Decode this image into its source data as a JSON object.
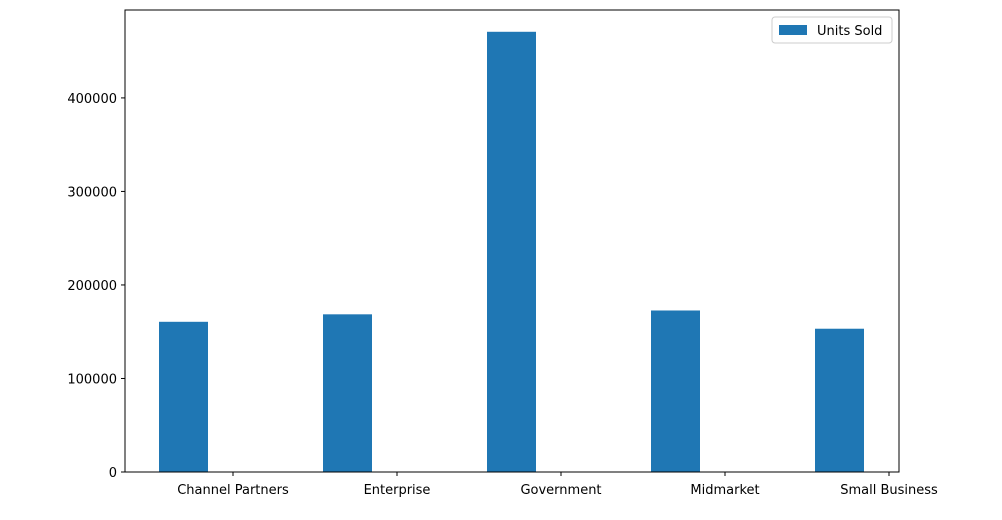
{
  "chart_data": {
    "type": "bar",
    "categories": [
      "Channel Partners",
      "Enterprise",
      "Government",
      "Midmarket",
      "Small Business"
    ],
    "series": [
      {
        "name": "Units Sold",
        "values": [
          160600,
          168600,
          470700,
          172700,
          153200
        ],
        "color": "#1f77b4"
      }
    ],
    "title": "",
    "xlabel": "",
    "ylabel": "",
    "ylim": [
      0,
      494000
    ],
    "yticks": [
      0,
      100000,
      200000,
      300000,
      400000
    ],
    "ytick_labels": [
      "0",
      "100000",
      "200000",
      "300000",
      "400000"
    ],
    "grid": false,
    "legend_position": "top-right"
  }
}
